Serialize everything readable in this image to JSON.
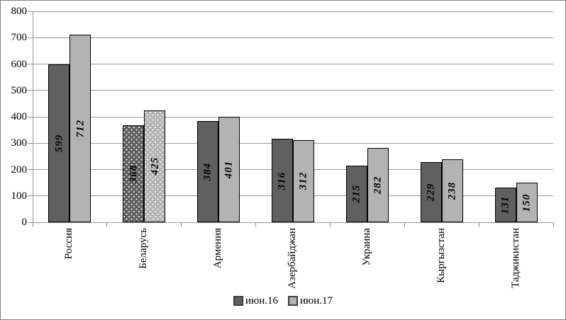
{
  "chart_data": {
    "type": "bar",
    "categories": [
      "Россия",
      "Беларусь",
      "Армения",
      "Азербайджан",
      "Украина",
      "Кыргызстан",
      "Таджикистан"
    ],
    "series": [
      {
        "name": "июн.16",
        "values": [
          599,
          368,
          384,
          316,
          215,
          229,
          131
        ],
        "color": "#606060"
      },
      {
        "name": "июн.17",
        "values": [
          712,
          425,
          401,
          312,
          282,
          238,
          150
        ],
        "color": "#b3b3b3"
      }
    ],
    "dotted_category_index": 1,
    "title": "",
    "xlabel": "",
    "ylabel": "",
    "ylim": [
      0,
      800
    ],
    "ytick_step": 100,
    "ytick_labels": [
      "0",
      "100",
      "200",
      "300",
      "400",
      "500",
      "600",
      "700",
      "800"
    ],
    "grid": true,
    "legend_position": "bottom",
    "bar_labels_rotated": true,
    "category_labels_rotated": true,
    "colors": {
      "grid": "#969696",
      "axis": "#969696",
      "bar_border": "#000000",
      "pattern_dot": "#ffffff",
      "text": "#000000",
      "background": "#ffffff",
      "frame_border": "#7f7f7f"
    }
  }
}
